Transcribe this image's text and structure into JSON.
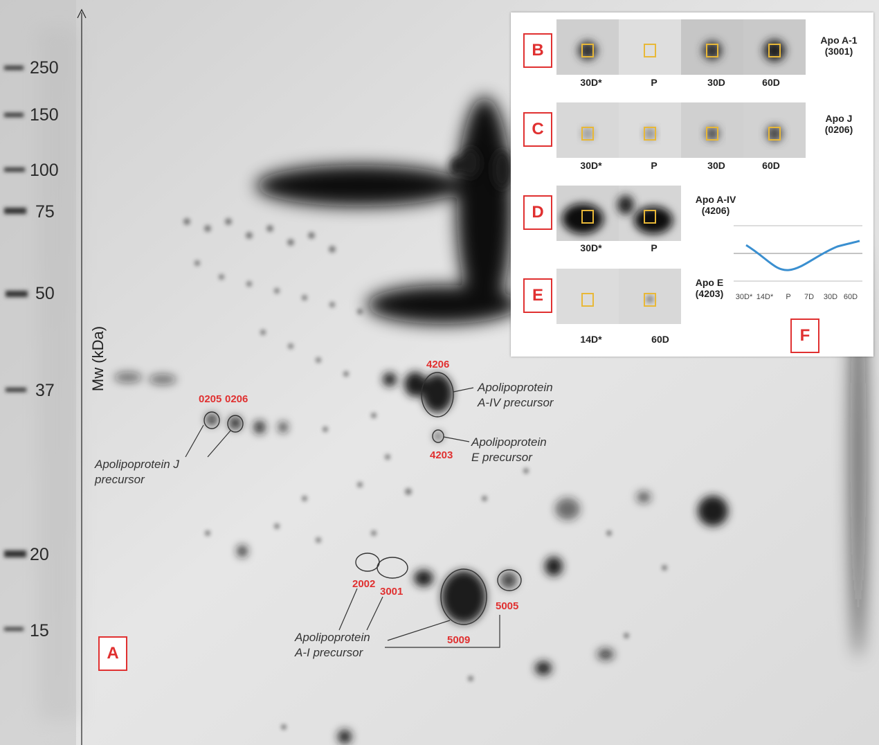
{
  "figure": {
    "mw_axis_label": "Mw (kDa)",
    "markers": [
      "250",
      "150",
      "100",
      "75",
      "50",
      "37",
      "20",
      "15"
    ],
    "panel_a_label": "A",
    "spot_ids": [
      "0205",
      "0206",
      "4206",
      "4203",
      "2002",
      "3001",
      "5005",
      "5009"
    ],
    "annotations": {
      "apo_j_line1": "Apolipoprotein J",
      "apo_j_line2": "precursor",
      "apo_a4_line1": "Apolipoprotein",
      "apo_a4_line2": "A-IV precursor",
      "apo_e_line1": "Apolipoprotein",
      "apo_e_line2": "E precursor",
      "apo_a1_line1": "Apolipoprotein",
      "apo_a1_line2": "A-I precursor"
    }
  },
  "inset": {
    "rows": [
      {
        "label": "B",
        "name_line1": "Apo A-1",
        "name_line2": "(3001)",
        "conditions": [
          "30D*",
          "P",
          "30D",
          "60D"
        ]
      },
      {
        "label": "C",
        "name_line1": "Apo J",
        "name_line2": "(0206)",
        "conditions": [
          "30D*",
          "P",
          "30D",
          "60D"
        ]
      },
      {
        "label": "D",
        "name_line1": "Apo A-IV",
        "name_line2": "(4206)",
        "conditions": [
          "30D*",
          "P"
        ]
      },
      {
        "label": "E",
        "name_line1": "Apo E",
        "name_line2": "(4203)",
        "conditions": [
          "14D*",
          "60D"
        ]
      }
    ],
    "panel_f_label": "F",
    "trend_chart": {
      "x_labels": [
        "30D*",
        "14D*",
        "P",
        "7D",
        "30D",
        "60D"
      ],
      "series_color": "#3a8fd0"
    }
  }
}
